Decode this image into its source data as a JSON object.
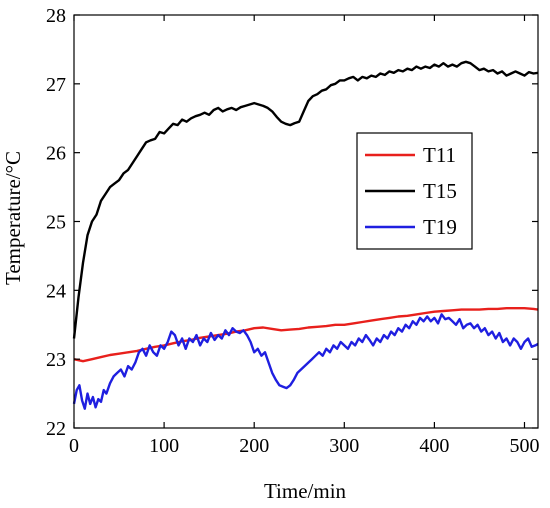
{
  "chart_data": {
    "type": "line",
    "xlabel": "Time/min",
    "ylabel": "Temperature/°C",
    "xlim": [
      0,
      515
    ],
    "ylim": [
      22,
      28
    ],
    "x_ticks": [
      "0",
      "100",
      "200",
      "300",
      "400",
      "500"
    ],
    "y_ticks": [
      "22",
      "23",
      "24",
      "25",
      "26",
      "27",
      "28"
    ],
    "legend_position": "center-right",
    "grid": false,
    "series": [
      {
        "name": "T11",
        "color": "#e8201c",
        "points": [
          [
            0,
            23.0
          ],
          [
            10,
            22.97
          ],
          [
            20,
            23.0
          ],
          [
            30,
            23.03
          ],
          [
            40,
            23.06
          ],
          [
            50,
            23.08
          ],
          [
            60,
            23.1
          ],
          [
            70,
            23.12
          ],
          [
            80,
            23.15
          ],
          [
            90,
            23.18
          ],
          [
            100,
            23.2
          ],
          [
            110,
            23.23
          ],
          [
            120,
            23.26
          ],
          [
            130,
            23.28
          ],
          [
            140,
            23.31
          ],
          [
            150,
            23.33
          ],
          [
            160,
            23.35
          ],
          [
            170,
            23.37
          ],
          [
            180,
            23.4
          ],
          [
            190,
            23.42
          ],
          [
            200,
            23.45
          ],
          [
            210,
            23.46
          ],
          [
            220,
            23.44
          ],
          [
            230,
            23.42
          ],
          [
            240,
            23.43
          ],
          [
            250,
            23.44
          ],
          [
            260,
            23.46
          ],
          [
            270,
            23.47
          ],
          [
            280,
            23.48
          ],
          [
            290,
            23.5
          ],
          [
            300,
            23.5
          ],
          [
            310,
            23.52
          ],
          [
            320,
            23.54
          ],
          [
            330,
            23.56
          ],
          [
            340,
            23.58
          ],
          [
            350,
            23.6
          ],
          [
            360,
            23.62
          ],
          [
            370,
            23.63
          ],
          [
            380,
            23.65
          ],
          [
            390,
            23.67
          ],
          [
            400,
            23.69
          ],
          [
            410,
            23.7
          ],
          [
            420,
            23.71
          ],
          [
            430,
            23.72
          ],
          [
            440,
            23.72
          ],
          [
            450,
            23.72
          ],
          [
            460,
            23.73
          ],
          [
            470,
            23.73
          ],
          [
            480,
            23.74
          ],
          [
            490,
            23.74
          ],
          [
            500,
            23.74
          ],
          [
            510,
            23.73
          ],
          [
            515,
            23.72
          ]
        ]
      },
      {
        "name": "T15",
        "color": "#000000",
        "points": [
          [
            0,
            23.3
          ],
          [
            5,
            23.9
          ],
          [
            10,
            24.4
          ],
          [
            15,
            24.8
          ],
          [
            20,
            25.0
          ],
          [
            25,
            25.1
          ],
          [
            30,
            25.3
          ],
          [
            35,
            25.4
          ],
          [
            40,
            25.5
          ],
          [
            45,
            25.55
          ],
          [
            50,
            25.6
          ],
          [
            55,
            25.7
          ],
          [
            60,
            25.75
          ],
          [
            65,
            25.85
          ],
          [
            70,
            25.95
          ],
          [
            75,
            26.05
          ],
          [
            80,
            26.15
          ],
          [
            85,
            26.18
          ],
          [
            90,
            26.2
          ],
          [
            95,
            26.3
          ],
          [
            100,
            26.28
          ],
          [
            105,
            26.35
          ],
          [
            110,
            26.42
          ],
          [
            115,
            26.4
          ],
          [
            120,
            26.48
          ],
          [
            125,
            26.45
          ],
          [
            130,
            26.5
          ],
          [
            135,
            26.53
          ],
          [
            140,
            26.55
          ],
          [
            145,
            26.58
          ],
          [
            150,
            26.55
          ],
          [
            155,
            26.62
          ],
          [
            160,
            26.65
          ],
          [
            165,
            26.6
          ],
          [
            170,
            26.63
          ],
          [
            175,
            26.65
          ],
          [
            180,
            26.62
          ],
          [
            185,
            26.66
          ],
          [
            190,
            26.68
          ],
          [
            195,
            26.7
          ],
          [
            200,
            26.72
          ],
          [
            205,
            26.7
          ],
          [
            210,
            26.68
          ],
          [
            215,
            26.65
          ],
          [
            220,
            26.6
          ],
          [
            225,
            26.52
          ],
          [
            230,
            26.45
          ],
          [
            235,
            26.42
          ],
          [
            240,
            26.4
          ],
          [
            245,
            26.43
          ],
          [
            250,
            26.45
          ],
          [
            255,
            26.6
          ],
          [
            260,
            26.75
          ],
          [
            265,
            26.82
          ],
          [
            270,
            26.85
          ],
          [
            275,
            26.9
          ],
          [
            280,
            26.92
          ],
          [
            285,
            26.98
          ],
          [
            290,
            27.0
          ],
          [
            295,
            27.05
          ],
          [
            300,
            27.05
          ],
          [
            305,
            27.08
          ],
          [
            310,
            27.1
          ],
          [
            315,
            27.05
          ],
          [
            320,
            27.1
          ],
          [
            325,
            27.08
          ],
          [
            330,
            27.12
          ],
          [
            335,
            27.1
          ],
          [
            340,
            27.15
          ],
          [
            345,
            27.13
          ],
          [
            350,
            27.18
          ],
          [
            355,
            27.16
          ],
          [
            360,
            27.2
          ],
          [
            365,
            27.18
          ],
          [
            370,
            27.22
          ],
          [
            375,
            27.2
          ],
          [
            380,
            27.25
          ],
          [
            385,
            27.22
          ],
          [
            390,
            27.25
          ],
          [
            395,
            27.23
          ],
          [
            400,
            27.28
          ],
          [
            405,
            27.25
          ],
          [
            410,
            27.3
          ],
          [
            415,
            27.25
          ],
          [
            420,
            27.28
          ],
          [
            425,
            27.25
          ],
          [
            430,
            27.3
          ],
          [
            435,
            27.32
          ],
          [
            440,
            27.3
          ],
          [
            445,
            27.25
          ],
          [
            450,
            27.2
          ],
          [
            455,
            27.22
          ],
          [
            460,
            27.18
          ],
          [
            465,
            27.2
          ],
          [
            470,
            27.15
          ],
          [
            475,
            27.18
          ],
          [
            480,
            27.12
          ],
          [
            485,
            27.15
          ],
          [
            490,
            27.18
          ],
          [
            495,
            27.15
          ],
          [
            500,
            27.12
          ],
          [
            505,
            27.17
          ],
          [
            510,
            27.15
          ],
          [
            515,
            27.16
          ]
        ]
      },
      {
        "name": "T19",
        "color": "#1f1fe0",
        "points": [
          [
            0,
            22.35
          ],
          [
            3,
            22.55
          ],
          [
            6,
            22.62
          ],
          [
            9,
            22.4
          ],
          [
            12,
            22.28
          ],
          [
            15,
            22.5
          ],
          [
            18,
            22.35
          ],
          [
            21,
            22.45
          ],
          [
            24,
            22.3
          ],
          [
            27,
            22.42
          ],
          [
            30,
            22.38
          ],
          [
            33,
            22.55
          ],
          [
            36,
            22.5
          ],
          [
            40,
            22.65
          ],
          [
            44,
            22.75
          ],
          [
            48,
            22.8
          ],
          [
            52,
            22.85
          ],
          [
            56,
            22.75
          ],
          [
            60,
            22.9
          ],
          [
            64,
            22.85
          ],
          [
            68,
            22.95
          ],
          [
            72,
            23.1
          ],
          [
            76,
            23.15
          ],
          [
            80,
            23.05
          ],
          [
            84,
            23.2
          ],
          [
            88,
            23.1
          ],
          [
            92,
            23.05
          ],
          [
            96,
            23.2
          ],
          [
            100,
            23.15
          ],
          [
            104,
            23.25
          ],
          [
            108,
            23.4
          ],
          [
            112,
            23.35
          ],
          [
            116,
            23.2
          ],
          [
            120,
            23.3
          ],
          [
            124,
            23.15
          ],
          [
            128,
            23.3
          ],
          [
            132,
            23.25
          ],
          [
            136,
            23.35
          ],
          [
            140,
            23.2
          ],
          [
            144,
            23.3
          ],
          [
            148,
            23.25
          ],
          [
            152,
            23.38
          ],
          [
            156,
            23.28
          ],
          [
            160,
            23.35
          ],
          [
            164,
            23.3
          ],
          [
            168,
            23.42
          ],
          [
            172,
            23.35
          ],
          [
            176,
            23.45
          ],
          [
            180,
            23.4
          ],
          [
            184,
            23.38
          ],
          [
            188,
            23.42
          ],
          [
            192,
            23.35
          ],
          [
            196,
            23.25
          ],
          [
            200,
            23.1
          ],
          [
            204,
            23.15
          ],
          [
            208,
            23.05
          ],
          [
            212,
            23.1
          ],
          [
            216,
            22.95
          ],
          [
            220,
            22.8
          ],
          [
            224,
            22.7
          ],
          [
            228,
            22.62
          ],
          [
            232,
            22.6
          ],
          [
            236,
            22.58
          ],
          [
            240,
            22.62
          ],
          [
            244,
            22.7
          ],
          [
            248,
            22.8
          ],
          [
            252,
            22.85
          ],
          [
            256,
            22.9
          ],
          [
            260,
            22.95
          ],
          [
            264,
            23.0
          ],
          [
            268,
            23.05
          ],
          [
            272,
            23.1
          ],
          [
            276,
            23.05
          ],
          [
            280,
            23.15
          ],
          [
            284,
            23.1
          ],
          [
            288,
            23.2
          ],
          [
            292,
            23.15
          ],
          [
            296,
            23.25
          ],
          [
            300,
            23.2
          ],
          [
            304,
            23.15
          ],
          [
            308,
            23.25
          ],
          [
            312,
            23.2
          ],
          [
            316,
            23.3
          ],
          [
            320,
            23.25
          ],
          [
            324,
            23.35
          ],
          [
            328,
            23.28
          ],
          [
            332,
            23.2
          ],
          [
            336,
            23.3
          ],
          [
            340,
            23.25
          ],
          [
            344,
            23.35
          ],
          [
            348,
            23.3
          ],
          [
            352,
            23.4
          ],
          [
            356,
            23.35
          ],
          [
            360,
            23.45
          ],
          [
            364,
            23.4
          ],
          [
            368,
            23.5
          ],
          [
            372,
            23.45
          ],
          [
            376,
            23.55
          ],
          [
            380,
            23.5
          ],
          [
            384,
            23.6
          ],
          [
            388,
            23.55
          ],
          [
            392,
            23.62
          ],
          [
            396,
            23.55
          ],
          [
            400,
            23.6
          ],
          [
            404,
            23.52
          ],
          [
            408,
            23.65
          ],
          [
            412,
            23.58
          ],
          [
            416,
            23.6
          ],
          [
            420,
            23.55
          ],
          [
            424,
            23.5
          ],
          [
            428,
            23.58
          ],
          [
            432,
            23.45
          ],
          [
            436,
            23.5
          ],
          [
            440,
            23.52
          ],
          [
            444,
            23.45
          ],
          [
            448,
            23.5
          ],
          [
            452,
            23.4
          ],
          [
            456,
            23.45
          ],
          [
            460,
            23.35
          ],
          [
            464,
            23.4
          ],
          [
            468,
            23.3
          ],
          [
            472,
            23.38
          ],
          [
            476,
            23.25
          ],
          [
            480,
            23.3
          ],
          [
            484,
            23.2
          ],
          [
            488,
            23.3
          ],
          [
            492,
            23.25
          ],
          [
            496,
            23.15
          ],
          [
            500,
            23.25
          ],
          [
            504,
            23.3
          ],
          [
            508,
            23.18
          ],
          [
            512,
            23.2
          ],
          [
            515,
            23.22
          ]
        ]
      }
    ]
  }
}
